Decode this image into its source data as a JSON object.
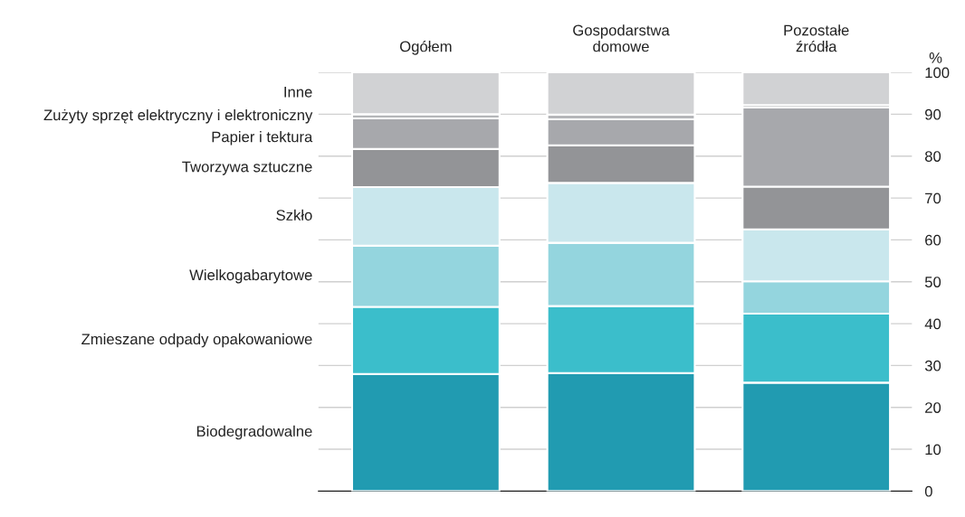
{
  "chart_data": {
    "type": "bar",
    "stacked": true,
    "categories": [
      "Ogółem",
      "Gospodarstwa\ndomowe",
      "Pozostałe\nźródła"
    ],
    "ylabel": "%",
    "ylim": [
      0,
      100
    ],
    "yticks": [
      0,
      10,
      20,
      30,
      40,
      50,
      60,
      70,
      80,
      90,
      100
    ],
    "grid": "y",
    "series": [
      {
        "name": "Biodegradowalne",
        "color": "#219bb1",
        "values": [
          28.0,
          28.2,
          25.9
        ]
      },
      {
        "name": "Zmieszane odpady opakowaniowe",
        "color": "#3bbecb",
        "values": [
          16.0,
          16.0,
          16.5
        ]
      },
      {
        "name": "Wielkogabarytowe",
        "color": "#94d5de",
        "values": [
          14.6,
          15.1,
          7.7
        ]
      },
      {
        "name": "Szkło",
        "color": "#c9e7ed",
        "values": [
          14.0,
          14.3,
          12.4
        ]
      },
      {
        "name": "Tworzywa sztuczne",
        "color": "#939497",
        "values": [
          9.1,
          9.0,
          10.2
        ]
      },
      {
        "name": "Papier i tektura",
        "color": "#a7a8ac",
        "values": [
          7.3,
          6.2,
          18.9
        ]
      },
      {
        "name": "Zużyty sprzęt elektryczny i elektroniczny",
        "color": "#b5b6b9",
        "values": [
          1.0,
          1.1,
          0.6
        ]
      },
      {
        "name": "Inne",
        "color": "#d1d2d4",
        "values": [
          10.0,
          10.1,
          7.8
        ]
      }
    ]
  }
}
